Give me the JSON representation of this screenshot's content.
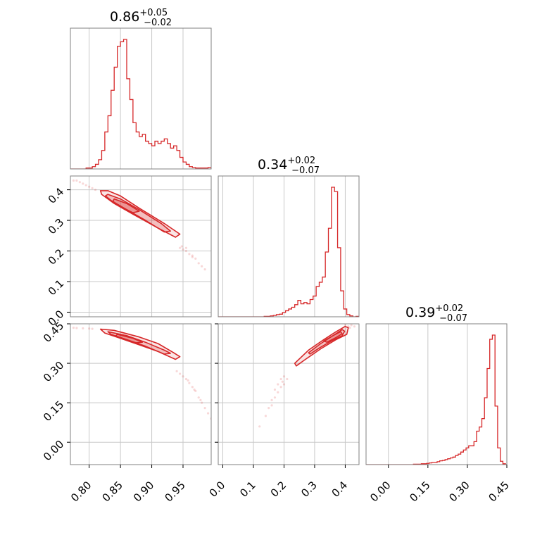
{
  "chart_data": {
    "type": "corner",
    "color": "#d62728",
    "parameters": [
      {
        "title": {
          "median": "0.86",
          "plus": "+0.05",
          "minus": "−0.02"
        },
        "range": [
          0.77,
          0.995
        ],
        "ticks": [
          0.8,
          0.85,
          0.9,
          0.95
        ],
        "tick_labels": [
          "0.80",
          "0.85",
          "0.90",
          "0.95"
        ],
        "grid": [
          0.8,
          0.85,
          0.9,
          0.95
        ]
      },
      {
        "title": {
          "median": "0.34",
          "plus": "+0.02",
          "minus": "−0.07"
        },
        "range": [
          -0.015,
          0.445
        ],
        "ticks": [
          0.0,
          0.1,
          0.2,
          0.3,
          0.4
        ],
        "tick_labels": [
          "0.0",
          "0.1",
          "0.2",
          "0.3",
          "0.4"
        ],
        "grid": [
          0.0,
          0.1,
          0.2,
          0.3,
          0.4
        ]
      },
      {
        "title": {
          "median": "0.39",
          "plus": "+0.02",
          "minus": "−0.07"
        },
        "range": [
          -0.085,
          0.45
        ],
        "ticks": [
          0.0,
          0.15,
          0.3,
          0.45
        ],
        "tick_labels": [
          "0.00",
          "0.15",
          "0.30",
          "0.45"
        ],
        "grid": [
          0.0,
          0.15,
          0.3,
          0.45
        ]
      }
    ],
    "histograms": [
      {
        "bins": [
          0.77,
          0.775,
          0.78,
          0.785,
          0.79,
          0.795,
          0.8,
          0.805,
          0.81,
          0.815,
          0.82,
          0.825,
          0.83,
          0.835,
          0.84,
          0.845,
          0.85,
          0.855,
          0.86,
          0.865,
          0.87,
          0.875,
          0.88,
          0.885,
          0.89,
          0.895,
          0.9,
          0.905,
          0.91,
          0.915,
          0.92,
          0.925,
          0.93,
          0.935,
          0.94,
          0.945,
          0.95,
          0.955,
          0.96,
          0.965,
          0.97,
          0.975,
          0.98,
          0.985,
          0.99,
          0.995
        ],
        "counts": [
          0,
          0,
          0,
          0,
          0,
          2,
          2,
          5,
          10,
          20,
          40,
          80,
          115,
          170,
          220,
          265,
          275,
          280,
          195,
          150,
          100,
          80,
          70,
          75,
          60,
          55,
          50,
          60,
          55,
          60,
          65,
          55,
          45,
          50,
          40,
          25,
          15,
          10,
          5,
          3,
          2,
          2,
          2,
          2,
          3
        ]
      },
      {
        "bins": [
          -0.015,
          -0.005,
          0.005,
          0.015,
          0.025,
          0.035,
          0.045,
          0.055,
          0.065,
          0.075,
          0.085,
          0.095,
          0.105,
          0.115,
          0.125,
          0.135,
          0.145,
          0.155,
          0.165,
          0.175,
          0.185,
          0.195,
          0.205,
          0.215,
          0.225,
          0.235,
          0.245,
          0.255,
          0.265,
          0.275,
          0.285,
          0.295,
          0.305,
          0.315,
          0.325,
          0.335,
          0.345,
          0.355,
          0.365,
          0.375,
          0.385,
          0.395,
          0.405,
          0.415,
          0.425,
          0.435,
          0.445
        ],
        "counts": [
          0,
          0,
          0,
          0,
          0,
          0,
          0,
          0,
          0,
          0,
          0,
          0,
          0,
          0,
          0,
          1,
          1,
          2,
          3,
          5,
          6,
          10,
          14,
          18,
          22,
          28,
          38,
          30,
          33,
          30,
          40,
          48,
          70,
          80,
          92,
          150,
          205,
          300,
          290,
          160,
          60,
          18,
          5,
          2,
          0,
          1
        ]
      },
      {
        "bins": [
          -0.085,
          -0.075,
          -0.065,
          -0.055,
          -0.045,
          -0.035,
          -0.025,
          -0.015,
          -0.005,
          0.005,
          0.015,
          0.025,
          0.035,
          0.045,
          0.055,
          0.065,
          0.075,
          0.085,
          0.095,
          0.105,
          0.115,
          0.125,
          0.135,
          0.145,
          0.155,
          0.165,
          0.175,
          0.185,
          0.195,
          0.205,
          0.215,
          0.225,
          0.235,
          0.245,
          0.255,
          0.265,
          0.275,
          0.285,
          0.295,
          0.305,
          0.315,
          0.325,
          0.335,
          0.345,
          0.355,
          0.365,
          0.375,
          0.385,
          0.395,
          0.405,
          0.415,
          0.425,
          0.435,
          0.445,
          0.45
        ],
        "counts": [
          0,
          0,
          0,
          0,
          0,
          0,
          0,
          0,
          0,
          0,
          0,
          0,
          0,
          0,
          0,
          0,
          0,
          0,
          1,
          1,
          1,
          2,
          2,
          3,
          4,
          5,
          5,
          7,
          9,
          10,
          12,
          14,
          16,
          18,
          22,
          25,
          30,
          35,
          40,
          45,
          45,
          55,
          80,
          90,
          110,
          160,
          230,
          300,
          310,
          140,
          40,
          8,
          2,
          0
        ]
      }
    ],
    "scatter": {
      "p21": [
        [
          0.775,
          0.43
        ],
        [
          0.78,
          0.43
        ],
        [
          0.785,
          0.425
        ],
        [
          0.79,
          0.42
        ],
        [
          0.795,
          0.415
        ],
        [
          0.8,
          0.41
        ],
        [
          0.805,
          0.405
        ],
        [
          0.81,
          0.4
        ],
        [
          0.945,
          0.21
        ],
        [
          0.95,
          0.205
        ],
        [
          0.955,
          0.2
        ],
        [
          0.96,
          0.19
        ],
        [
          0.965,
          0.18
        ],
        [
          0.97,
          0.175
        ],
        [
          0.975,
          0.16
        ],
        [
          0.98,
          0.15
        ],
        [
          0.955,
          0.21
        ],
        [
          0.965,
          0.185
        ],
        [
          0.985,
          0.14
        ],
        [
          0.948,
          0.215
        ]
      ],
      "p31": [
        [
          0.775,
          0.435
        ],
        [
          0.78,
          0.434
        ],
        [
          0.79,
          0.433
        ],
        [
          0.8,
          0.432
        ],
        [
          0.805,
          0.431
        ],
        [
          0.94,
          0.27
        ],
        [
          0.945,
          0.26
        ],
        [
          0.95,
          0.25
        ],
        [
          0.955,
          0.24
        ],
        [
          0.96,
          0.225
        ],
        [
          0.965,
          0.21
        ],
        [
          0.97,
          0.195
        ],
        [
          0.975,
          0.17
        ],
        [
          0.98,
          0.15
        ],
        [
          0.985,
          0.13
        ],
        [
          0.99,
          0.11
        ],
        [
          0.995,
          0.09
        ],
        [
          0.958,
          0.235
        ],
        [
          0.968,
          0.2
        ],
        [
          0.978,
          0.16
        ]
      ],
      "p32": [
        [
          0.12,
          0.06
        ],
        [
          0.14,
          0.1
        ],
        [
          0.15,
          0.13
        ],
        [
          0.16,
          0.14
        ],
        [
          0.17,
          0.17
        ],
        [
          0.18,
          0.19
        ],
        [
          0.19,
          0.21
        ],
        [
          0.195,
          0.23
        ],
        [
          0.2,
          0.22
        ],
        [
          0.21,
          0.24
        ],
        [
          0.17,
          0.2
        ],
        [
          0.18,
          0.22
        ],
        [
          0.19,
          0.24
        ],
        [
          0.2,
          0.25
        ],
        [
          0.16,
          0.16
        ],
        [
          0.41,
          0.44
        ],
        [
          0.42,
          0.445
        ],
        [
          0.43,
          0.44
        ],
        [
          0.4,
          0.445
        ],
        [
          0.415,
          0.435
        ]
      ]
    },
    "contours": {
      "p21": [
        [
          [
            0.818,
            0.397
          ],
          [
            0.83,
            0.397
          ],
          [
            0.85,
            0.38
          ],
          [
            0.88,
            0.34
          ],
          [
            0.92,
            0.29
          ],
          [
            0.945,
            0.255
          ],
          [
            0.938,
            0.245
          ],
          [
            0.91,
            0.275
          ],
          [
            0.87,
            0.32
          ],
          [
            0.84,
            0.355
          ],
          [
            0.82,
            0.385
          ]
        ],
        [
          [
            0.83,
            0.385
          ],
          [
            0.85,
            0.37
          ],
          [
            0.88,
            0.335
          ],
          [
            0.915,
            0.29
          ],
          [
            0.93,
            0.265
          ],
          [
            0.92,
            0.262
          ],
          [
            0.89,
            0.3
          ],
          [
            0.86,
            0.335
          ],
          [
            0.835,
            0.365
          ],
          [
            0.826,
            0.38
          ]
        ],
        [
          [
            0.84,
            0.37
          ],
          [
            0.86,
            0.355
          ],
          [
            0.88,
            0.33
          ],
          [
            0.87,
            0.325
          ],
          [
            0.85,
            0.345
          ],
          [
            0.838,
            0.362
          ]
        ]
      ],
      "p31": [
        [
          [
            0.818,
            0.43
          ],
          [
            0.84,
            0.425
          ],
          [
            0.88,
            0.4
          ],
          [
            0.91,
            0.375
          ],
          [
            0.935,
            0.34
          ],
          [
            0.945,
            0.325
          ],
          [
            0.938,
            0.315
          ],
          [
            0.91,
            0.345
          ],
          [
            0.88,
            0.37
          ],
          [
            0.85,
            0.395
          ],
          [
            0.825,
            0.415
          ]
        ],
        [
          [
            0.83,
            0.42
          ],
          [
            0.86,
            0.405
          ],
          [
            0.89,
            0.38
          ],
          [
            0.92,
            0.35
          ],
          [
            0.93,
            0.338
          ],
          [
            0.92,
            0.335
          ],
          [
            0.89,
            0.365
          ],
          [
            0.86,
            0.39
          ],
          [
            0.835,
            0.41
          ]
        ],
        [
          [
            0.845,
            0.41
          ],
          [
            0.87,
            0.395
          ],
          [
            0.885,
            0.38
          ],
          [
            0.875,
            0.378
          ],
          [
            0.855,
            0.392
          ],
          [
            0.842,
            0.403
          ]
        ]
      ],
      "p32": [
        [
          [
            0.235,
            0.3
          ],
          [
            0.28,
            0.35
          ],
          [
            0.33,
            0.39
          ],
          [
            0.37,
            0.42
          ],
          [
            0.4,
            0.44
          ],
          [
            0.41,
            0.435
          ],
          [
            0.405,
            0.41
          ],
          [
            0.37,
            0.39
          ],
          [
            0.32,
            0.355
          ],
          [
            0.27,
            0.315
          ],
          [
            0.24,
            0.29
          ]
        ],
        [
          [
            0.28,
            0.34
          ],
          [
            0.32,
            0.375
          ],
          [
            0.36,
            0.405
          ],
          [
            0.39,
            0.428
          ],
          [
            0.398,
            0.422
          ],
          [
            0.39,
            0.405
          ],
          [
            0.355,
            0.385
          ],
          [
            0.315,
            0.358
          ],
          [
            0.285,
            0.335
          ]
        ],
        [
          [
            0.33,
            0.385
          ],
          [
            0.36,
            0.405
          ],
          [
            0.385,
            0.42
          ],
          [
            0.39,
            0.412
          ],
          [
            0.37,
            0.398
          ],
          [
            0.34,
            0.38
          ]
        ]
      ]
    }
  }
}
